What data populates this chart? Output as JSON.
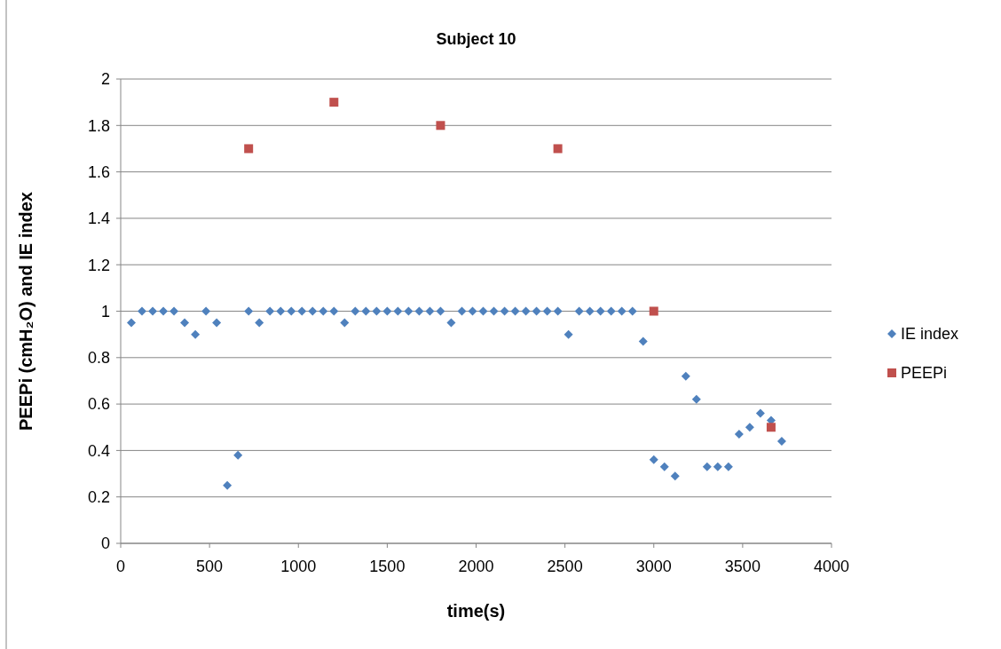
{
  "chart_data": {
    "type": "scatter",
    "title": "Subject 10",
    "xlabel": "time(s)",
    "ylabel": "PEEPi (cmH₂O) and IE index",
    "xlim": [
      0,
      4000
    ],
    "xticks": [
      0,
      500,
      1000,
      1500,
      2000,
      2500,
      3000,
      3500,
      4000
    ],
    "ylim": [
      0,
      2
    ],
    "yticks": [
      0,
      0.2,
      0.4,
      0.6,
      0.8,
      1,
      1.2,
      1.4,
      1.6,
      1.8,
      2
    ],
    "grid": "y",
    "legend": "right",
    "series": [
      {
        "name": "IE index",
        "color": "#4f81bd",
        "marker": "diamond",
        "x": [
          60,
          120,
          180,
          240,
          300,
          360,
          420,
          480,
          540,
          600,
          660,
          720,
          780,
          840,
          900,
          960,
          1020,
          1080,
          1140,
          1200,
          1260,
          1320,
          1380,
          1440,
          1500,
          1560,
          1620,
          1680,
          1740,
          1800,
          1860,
          1920,
          1980,
          2040,
          2100,
          2160,
          2220,
          2280,
          2340,
          2400,
          2460,
          2520,
          2580,
          2640,
          2700,
          2760,
          2820,
          2880,
          2940,
          3000,
          3060,
          3120,
          3180,
          3240,
          3300,
          3360,
          3420,
          3480,
          3540,
          3600,
          3660,
          3720
        ],
        "values": [
          0.95,
          1,
          1,
          1,
          1,
          0.95,
          0.9,
          1,
          0.95,
          0.25,
          0.38,
          1,
          0.95,
          1,
          1,
          1,
          1,
          1,
          1,
          1,
          0.95,
          1,
          1,
          1,
          1,
          1,
          1,
          1,
          1,
          1,
          0.95,
          1,
          1,
          1,
          1,
          1,
          1,
          1,
          1,
          1,
          1,
          0.9,
          1,
          1,
          1,
          1,
          1,
          1,
          0.87,
          0.36,
          0.33,
          0.29,
          0.72,
          0.62,
          0.33,
          0.33,
          0.33,
          0.47,
          0.5,
          0.56,
          0.53,
          0.44
        ]
      },
      {
        "name": "PEEPi",
        "color": "#c0504d",
        "marker": "square",
        "x": [
          720,
          1200,
          1800,
          2460,
          3000,
          3660
        ],
        "values": [
          1.7,
          1.9,
          1.8,
          1.7,
          1,
          0.5
        ]
      }
    ]
  }
}
